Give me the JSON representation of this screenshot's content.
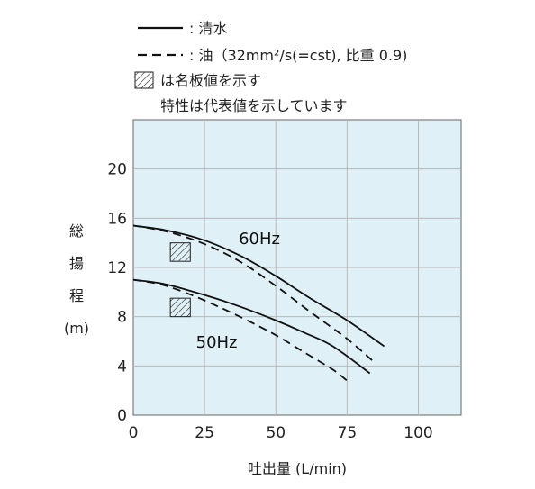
{
  "legend": {
    "solid": ": 清水",
    "dashed": ": 油（32mm²/s(=cst), 比重 0.9)",
    "hatch": "は名板値を示す",
    "note": "特性は代表値を示しています"
  },
  "chart_data": {
    "type": "line",
    "xlabel": "吐出量 (L/min)",
    "ylabel": [
      "総",
      "揚",
      "程",
      "(m)"
    ],
    "xlim": [
      0,
      115
    ],
    "ylim": [
      0,
      24
    ],
    "x_ticks": [
      "0",
      "25",
      "50",
      "75",
      "100"
    ],
    "y_ticks": [
      "0",
      "4",
      "8",
      "12",
      "16",
      "20"
    ],
    "x_tick_values": [
      0,
      25,
      50,
      75,
      100
    ],
    "y_tick_values": [
      0,
      4,
      8,
      12,
      16,
      20
    ],
    "grid": true,
    "background": "#dff0f7",
    "series": [
      {
        "name": "60Hz",
        "style": "solid",
        "x": [
          0,
          12,
          25,
          38,
          50,
          62,
          75,
          88
        ],
        "y": [
          15.4,
          15.0,
          14.2,
          12.9,
          11.3,
          9.5,
          7.7,
          5.6
        ]
      },
      {
        "name": "60Hz",
        "style": "dashed",
        "x": [
          0,
          12,
          25,
          38,
          50,
          62,
          75,
          85
        ],
        "y": [
          15.4,
          14.9,
          13.9,
          12.4,
          10.5,
          8.4,
          6.2,
          4.2
        ]
      },
      {
        "name": "50Hz",
        "style": "solid",
        "x": [
          0,
          10,
          20,
          30,
          40,
          50,
          60,
          70,
          83
        ],
        "y": [
          11.0,
          10.7,
          10.1,
          9.4,
          8.6,
          7.7,
          6.7,
          5.6,
          3.4
        ]
      },
      {
        "name": "50Hz",
        "style": "dashed",
        "x": [
          0,
          10,
          20,
          30,
          40,
          50,
          60,
          70,
          75
        ],
        "y": [
          11.0,
          10.6,
          9.8,
          8.8,
          7.7,
          6.5,
          5.1,
          3.7,
          2.8
        ]
      }
    ],
    "rated_points": [
      {
        "label": "60Hz",
        "x_range": [
          13,
          20
        ],
        "y_range": [
          12.5,
          14
        ]
      },
      {
        "label": "50Hz",
        "x_range": [
          13,
          20
        ],
        "y_range": [
          8,
          9.5
        ]
      }
    ],
    "annotations": [
      {
        "text": "60Hz",
        "x": 37,
        "y": 13.9
      },
      {
        "text": "50Hz",
        "x": 22,
        "y": 5.5
      }
    ]
  }
}
